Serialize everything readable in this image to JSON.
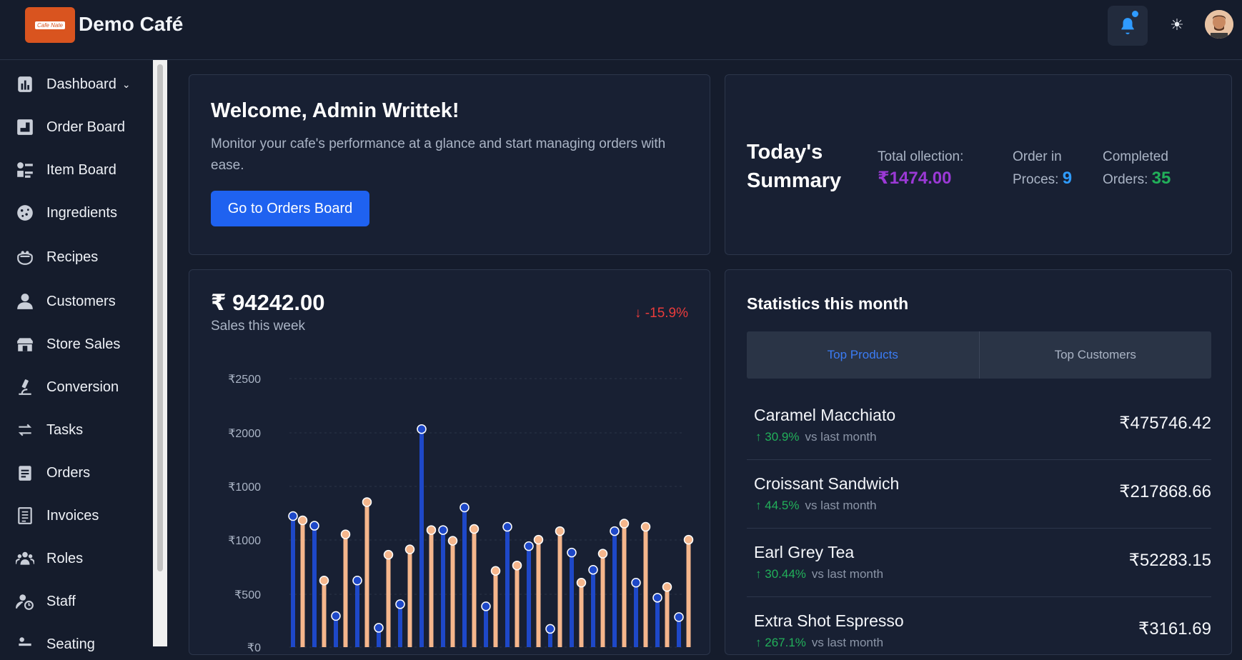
{
  "brand": {
    "logo_text": "Cafe Nate",
    "title": "Demo Café"
  },
  "header": {
    "icons": [
      "bell-icon",
      "sun-icon",
      "avatar"
    ]
  },
  "sidebar": {
    "items": [
      {
        "label": "Dashboard",
        "icon": "dashboard-icon"
      },
      {
        "label": "Order Board",
        "icon": "order-board-icon"
      },
      {
        "label": "Item Board",
        "icon": "item-board-icon"
      },
      {
        "label": "Ingredients",
        "icon": "cookie-icon"
      },
      {
        "label": "Recipes",
        "icon": "recipes-icon"
      },
      {
        "label": "Customers",
        "icon": "user-icon"
      },
      {
        "label": "Store Sales",
        "icon": "store-icon"
      },
      {
        "label": "Conversion",
        "icon": "microscope-icon"
      },
      {
        "label": "Tasks",
        "icon": "swap-icon"
      },
      {
        "label": "Orders",
        "icon": "orders-icon"
      },
      {
        "label": "Invoices",
        "icon": "invoice-icon"
      },
      {
        "label": "Roles",
        "icon": "roles-icon"
      },
      {
        "label": "Staff",
        "icon": "staff-icon"
      },
      {
        "label": "Seating",
        "icon": "seating-icon"
      }
    ]
  },
  "welcome": {
    "title": "Welcome, Admin Writtek!",
    "text": "Monitor your cafe's performance at a glance and start managing orders with ease.",
    "button": "Go to Orders Board"
  },
  "summary": {
    "title": "Today's Summary",
    "collection_label": "Total ollection:",
    "collection_value": "₹1474.00",
    "process_label": "Order in Proces:",
    "process_value": "9",
    "completed_label": "Completed Orders:",
    "completed_value": "35",
    "colors": {
      "collection": "#9b39d6",
      "process": "#2f9bff",
      "completed": "#22b05a"
    }
  },
  "sales": {
    "amount": "₹ 94242.00",
    "label": "Sales this week",
    "change": "↓ -15.9%"
  },
  "chart_data": {
    "type": "bar",
    "title": "",
    "ylabel": "",
    "y_tick_labels": [
      "₹2500",
      "₹2000",
      "₹1000",
      "₹1000",
      "₹500",
      "₹0"
    ],
    "series": [
      {
        "values": [
          1220,
          1130,
          290,
          620,
          180,
          400,
          2030,
          1090,
          1300,
          380,
          1120,
          940,
          170,
          880,
          720,
          1080,
          600,
          460,
          280
        ],
        "color": "#1e48c8"
      },
      {
        "values": [
          1180,
          620,
          1050,
          1350,
          860,
          910,
          1090,
          990,
          1100,
          710,
          760,
          1000,
          1080,
          600,
          870,
          1150,
          1120,
          560,
          1000
        ],
        "color": "#f5b68c"
      }
    ]
  },
  "stats": {
    "title": "Statistics this month",
    "tabs": [
      "Top Products",
      "Top Customers"
    ],
    "vs_label": "vs last month",
    "products": [
      {
        "name": "Caramel Macchiato",
        "change": "30.9%",
        "value": "₹475746.42"
      },
      {
        "name": "Croissant Sandwich",
        "change": "44.5%",
        "value": "₹217868.66"
      },
      {
        "name": "Earl Grey Tea",
        "change": "30.44%",
        "value": "₹52283.15"
      },
      {
        "name": "Extra Shot Espresso",
        "change": "267.1%",
        "value": "₹3161.69"
      }
    ]
  }
}
